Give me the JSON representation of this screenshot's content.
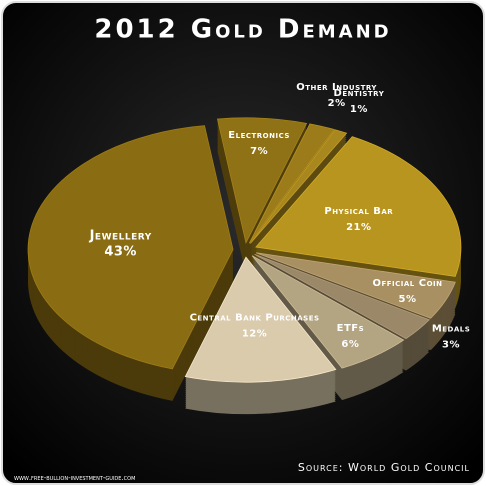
{
  "chart_data": {
    "type": "pie",
    "title": "2012 Gold Demand",
    "source": "Source: World Gold Council",
    "website": "www.free-bullion-investment-guide.com",
    "categories": [
      "Electronics",
      "Other Industry",
      "Dentistry",
      "Physical Bar",
      "Official Coin",
      "Medals",
      "ETFs",
      "Central Bank Purchases",
      "Jewellery"
    ],
    "values": [
      7,
      2,
      1,
      21,
      5,
      3,
      6,
      12,
      43
    ],
    "value_labels": [
      "7%",
      "2%",
      "1%",
      "21%",
      "5%",
      "3%",
      "6%",
      "12%",
      "43%"
    ],
    "colors": [
      "#8f7116",
      "#9c7c1a",
      "#a8871e",
      "#b8951f",
      "#a89062",
      "#9a8868",
      "#b3a482",
      "#d9cbac",
      "#8a6c12"
    ]
  }
}
